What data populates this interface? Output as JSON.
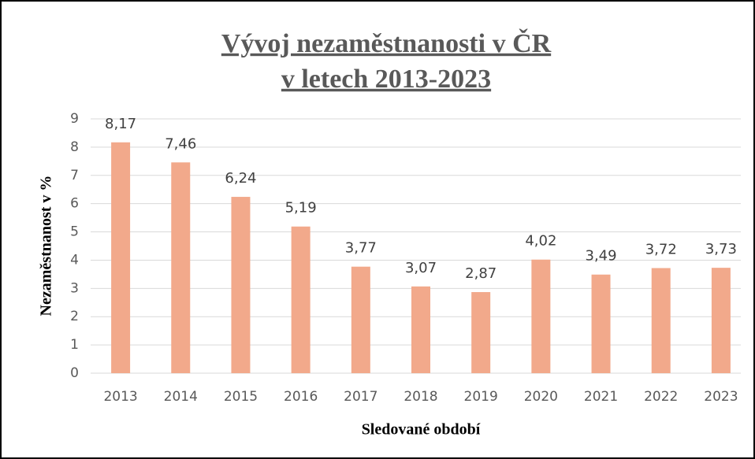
{
  "chart_data": {
    "type": "bar",
    "title": [
      "Vývoj nezaměstnanosti v ČR",
      "v letech 2013-2023"
    ],
    "x_label": "Sledované období",
    "y_label": "Nezaměstnanost v %",
    "categories": [
      "2013",
      "2014",
      "2015",
      "2016",
      "2017",
      "2018",
      "2019",
      "2020",
      "2021",
      "2022",
      "2023"
    ],
    "values": [
      8.17,
      7.46,
      6.24,
      5.19,
      3.77,
      3.07,
      2.87,
      4.02,
      3.49,
      3.72,
      3.73
    ],
    "value_labels": [
      "8,17",
      "7,46",
      "6,24",
      "5,19",
      "3,77",
      "3,07",
      "2,87",
      "4,02",
      "3,49",
      "3,72",
      "3,73"
    ],
    "color": "#f2a98b",
    "ylim": [
      0,
      9
    ],
    "yticks": [
      0,
      1,
      2,
      3,
      4,
      5,
      6,
      7,
      8,
      9
    ],
    "grid": true
  }
}
